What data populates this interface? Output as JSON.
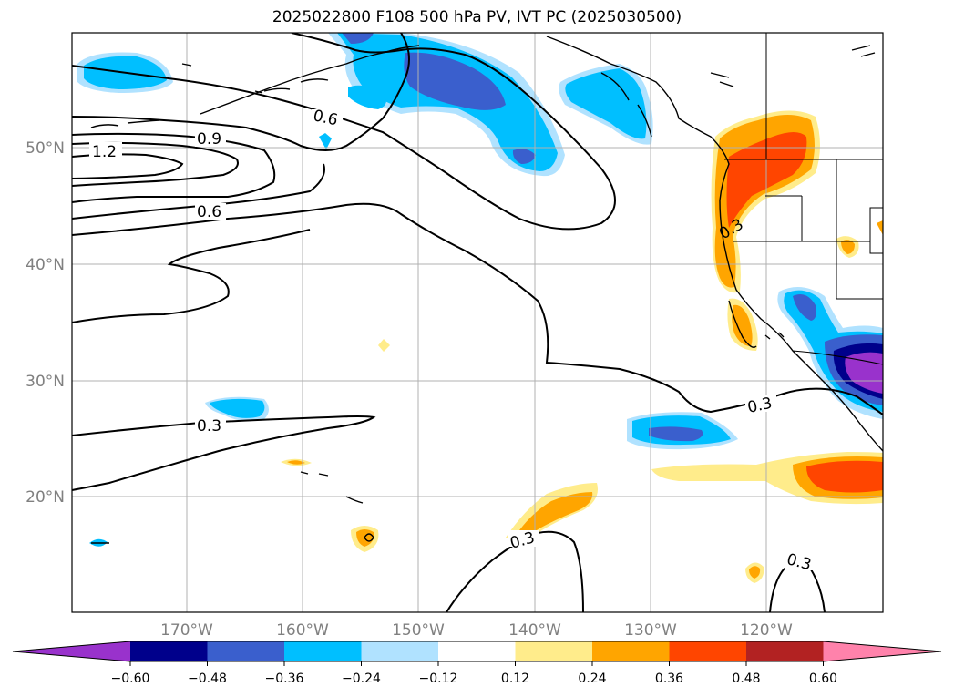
{
  "title": "2025022800 F108 500 hPa PV, IVT PC (2025030500)",
  "lat_labels": [
    "50°N",
    "40°N",
    "30°N",
    "20°N"
  ],
  "lon_labels": [
    "170°W",
    "160°W",
    "150°W",
    "140°W",
    "130°W",
    "120°W"
  ],
  "contour_labels": [
    "1.2",
    "0.9",
    "0.6",
    "0.6",
    "0.3",
    "0.3",
    "0.3",
    "0.3",
    "0.3"
  ],
  "colorbar": {
    "ticks": [
      "−0.60",
      "−0.48",
      "−0.36",
      "−0.24",
      "−0.12",
      "0.12",
      "0.24",
      "0.36",
      "0.48",
      "0.60"
    ],
    "colors": [
      "#9932cc",
      "#00008b",
      "#3a5fcd",
      "#00bfff",
      "#b0e2ff",
      "#ffffff",
      "#ffec8b",
      "#ffa500",
      "#ff4500",
      "#b22222",
      "#ff82ab"
    ]
  }
}
